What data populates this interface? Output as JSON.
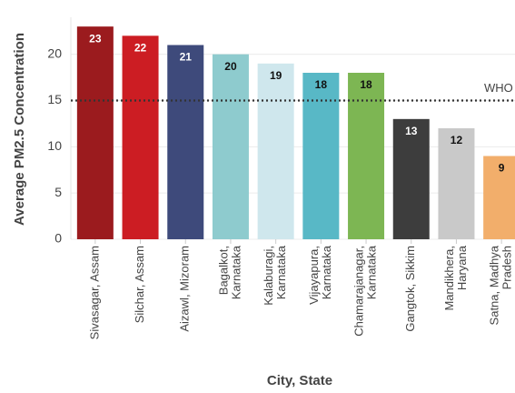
{
  "chart_data": {
    "type": "bar",
    "x_label": "City, State",
    "y_label": "Average PM2.5 Concentration",
    "categories": [
      [
        "Sivasagar, Assam"
      ],
      [
        "Silchar, Assam"
      ],
      [
        "Aizawl, Mizoram"
      ],
      [
        "Bagalkot,",
        "Karnataka"
      ],
      [
        "Kalaburagi,",
        "Karnataka"
      ],
      [
        "Vijayapura,",
        "Karnataka"
      ],
      [
        "Chamarajanagar,",
        "Karnataka"
      ],
      [
        "Gangtok, Sikkim"
      ],
      [
        "Mandikhera,",
        "Haryana"
      ],
      [
        "Satna, Madhya",
        "Pradesh"
      ]
    ],
    "values": [
      23,
      22,
      21,
      20,
      19,
      18,
      18,
      13,
      12,
      9
    ],
    "colors": [
      "#9b1b1e",
      "#cc1d23",
      "#3e4a7b",
      "#8ecbce",
      "#cfe7ed",
      "#58b8c6",
      "#7db653",
      "#3d3d3d",
      "#c9c9c9",
      "#f2ae6b"
    ],
    "ylim": [
      0,
      24
    ],
    "yticks": [
      0,
      5,
      10,
      15,
      20
    ],
    "grid": true,
    "reference_lines": [
      {
        "value": 15,
        "label": "WHO"
      }
    ]
  }
}
